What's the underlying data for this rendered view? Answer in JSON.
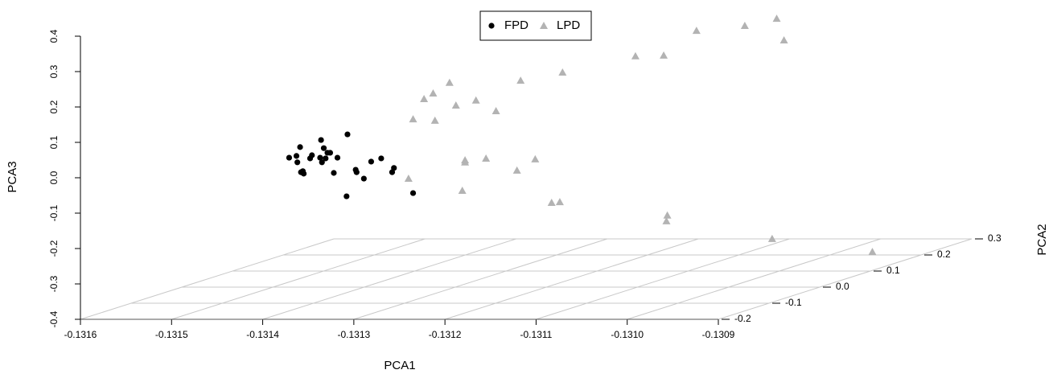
{
  "chart_data": {
    "type": "scatter3d",
    "xlabel": "PCA1",
    "ylabel": "PCA2",
    "zlabel": "PCA3",
    "xlim": [
      -0.1316,
      -0.1309
    ],
    "xticks": [
      -0.1316,
      -0.1315,
      -0.1314,
      -0.1313,
      -0.1312,
      -0.1311,
      {
        "value": -0.131,
        "label": "-0.1310"
      },
      -0.1309
    ],
    "ylim": [
      -0.2,
      0.3
    ],
    "yticks": [
      -0.2,
      -0.1,
      {
        "value": 0,
        "label": "0.0"
      },
      0.1,
      0.2,
      0.3
    ],
    "zlim": [
      -0.4,
      0.4
    ],
    "zticks": [
      -0.4,
      -0.3,
      -0.2,
      -0.1,
      {
        "value": 0,
        "label": "0.0"
      },
      0.1,
      0.2,
      0.3,
      0.4
    ],
    "grid": true,
    "legend": "top",
    "series": [
      {
        "name": "FPD",
        "color": "#000000",
        "marker": "circle",
        "x": [
          -0.13151,
          -0.131502,
          -0.131501,
          -0.131498,
          -0.131497,
          -0.131494,
          -0.131495,
          -0.131487,
          -0.131485,
          -0.131475,
          -0.131476,
          -0.131474,
          -0.131472,
          -0.13147,
          -0.131468,
          -0.131465,
          -0.131461,
          -0.131457,
          -0.131446,
          -0.131437,
          -0.131436,
          -0.131428,
          -0.13142,
          -0.131409,
          -0.131395,
          -0.131397,
          -0.131447,
          -0.131374
        ],
        "y": [
          0.05,
          0.05,
          0.05,
          0.05,
          0.05,
          0.05,
          0.05,
          0.05,
          0.05,
          0.05,
          0.05,
          0.05,
          0.05,
          0.05,
          0.05,
          0.05,
          0.05,
          0.05,
          0.05,
          0.05,
          0.05,
          0.05,
          0.05,
          0.05,
          0.05,
          0.05,
          0.05,
          0.05
        ],
        "z": [
          -0.057,
          -0.052,
          -0.07,
          -0.027,
          -0.098,
          -0.102,
          -0.095,
          -0.059,
          -0.05,
          -0.007,
          -0.057,
          -0.07,
          -0.03,
          -0.059,
          -0.043,
          -0.043,
          -0.1,
          -0.057,
          0.009,
          -0.091,
          -0.098,
          -0.116,
          -0.068,
          -0.059,
          -0.086,
          -0.098,
          -0.166,
          -0.157
        ]
      },
      {
        "name": "LPD",
        "color": "#b3b3b3",
        "marker": "triangle",
        "x": [
          -0.131374,
          -0.131362,
          -0.131352,
          -0.13135,
          -0.131334,
          -0.131327,
          -0.131305,
          -0.131283,
          -0.131256,
          -0.13121,
          -0.13113,
          -0.131099,
          -0.131063,
          -0.13101,
          -0.130975,
          -0.130967,
          -0.131379,
          -0.131317,
          -0.131317,
          -0.13132,
          -0.131294,
          -0.13126,
          -0.13124,
          -0.131222,
          -0.131213,
          -0.131095,
          -0.131096,
          -0.13098,
          -0.13087
        ],
        "y": [
          0.05,
          0.05,
          0.05,
          0.05,
          0.05,
          0.05,
          0.05,
          0.05,
          0.05,
          0.05,
          0.05,
          0.05,
          0.05,
          0.05,
          0.05,
          0.05,
          0.05,
          0.05,
          0.05,
          0.05,
          0.05,
          0.05,
          0.05,
          0.05,
          0.05,
          0.05,
          0.05,
          0.05,
          0.05
        ],
        "z": [
          0.052,
          0.109,
          0.125,
          0.048,
          0.155,
          0.091,
          0.105,
          0.075,
          0.161,
          0.184,
          0.23,
          0.232,
          0.302,
          0.316,
          0.336,
          0.275,
          -0.116,
          -0.064,
          -0.07,
          -0.15,
          -0.059,
          -0.093,
          -0.061,
          -0.184,
          -0.182,
          -0.22,
          -0.236,
          -0.286,
          -0.323
        ]
      }
    ]
  }
}
